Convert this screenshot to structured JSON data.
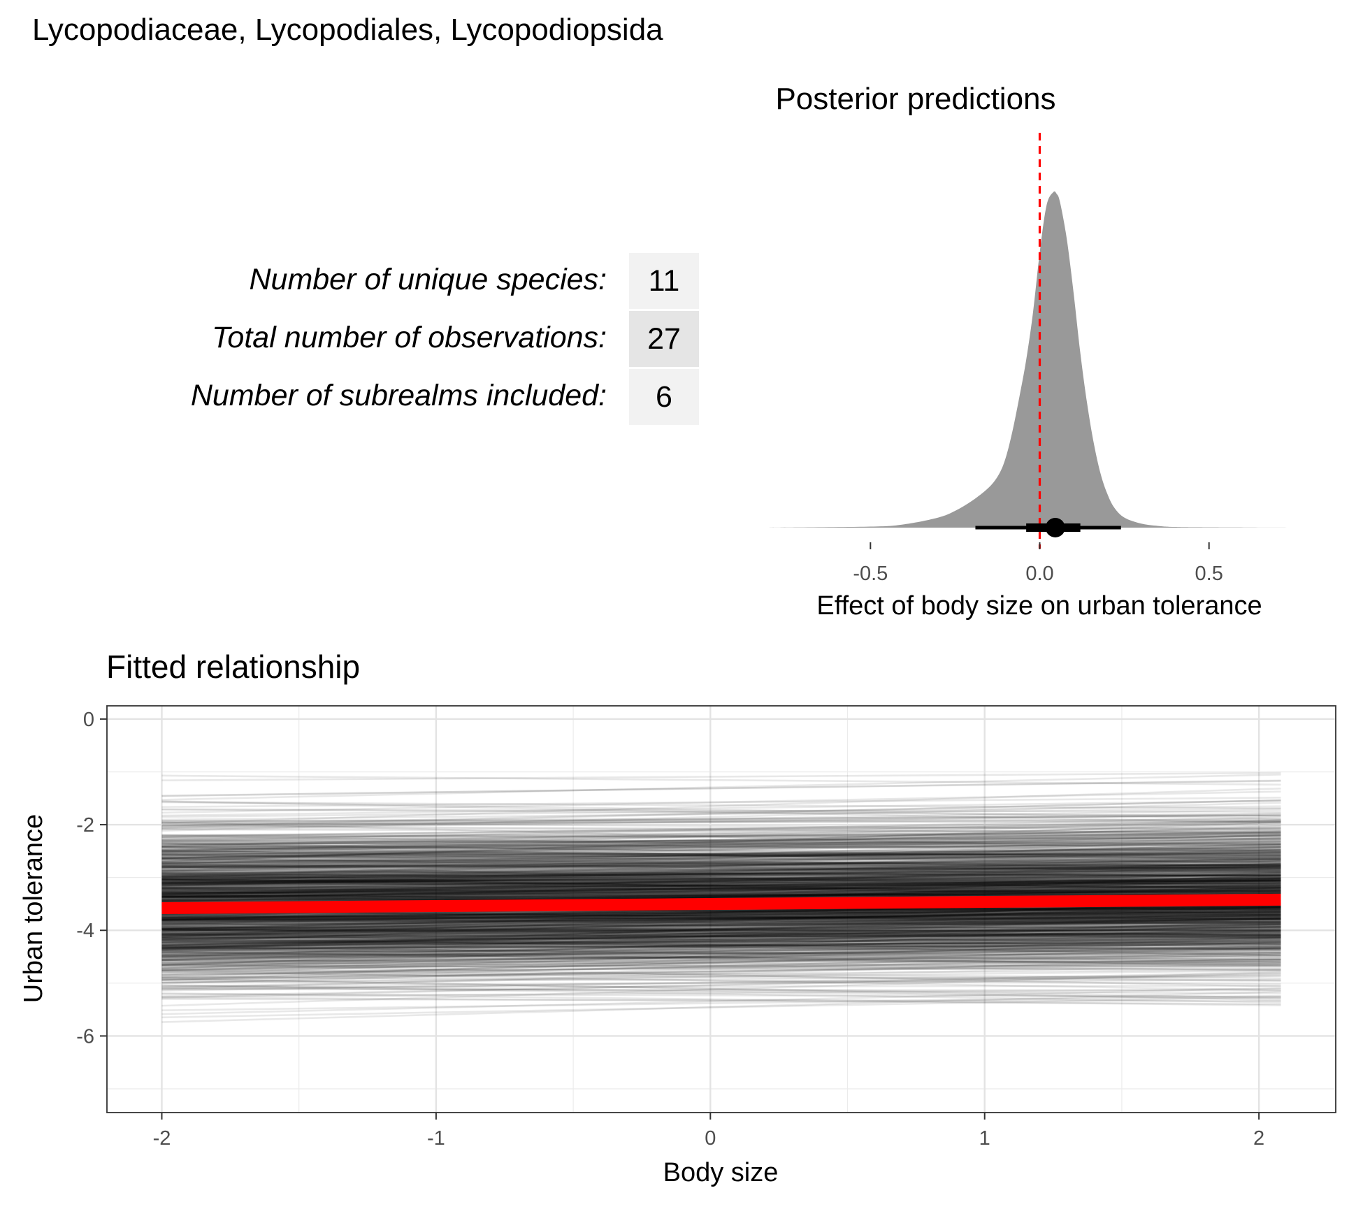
{
  "page": {
    "title": "Lycopodiaceae, Lycopodiales, Lycopodiopsida"
  },
  "stats": [
    {
      "label": "Number of unique species:",
      "value": "11"
    },
    {
      "label": "Total number of observations:",
      "value": "27"
    },
    {
      "label": "Number of subrealms included:",
      "value": "6"
    }
  ],
  "colors": {
    "density_fill": "#999999",
    "reference_line": "#ff0000",
    "fit_line": "#ff0000",
    "draw_lines": "#000000",
    "stat_cell_light": "#f2f2f2",
    "stat_cell_dark": "#e5e5e5"
  },
  "chart_data": [
    {
      "type": "area",
      "title": "Posterior predictions",
      "xlabel": "Effect of body size on urban tolerance",
      "ylabel": "",
      "xlim": [
        -0.8,
        0.8
      ],
      "x_ticks": [
        -0.5,
        0.0,
        0.5
      ],
      "x_tick_labels": [
        "-0.5",
        "0.0",
        "0.5"
      ],
      "reference_line_x": 0.0,
      "density": {
        "x": [
          -0.8,
          -0.5,
          -0.4,
          -0.3,
          -0.25,
          -0.2,
          -0.15,
          -0.12,
          -0.1,
          -0.08,
          -0.06,
          -0.04,
          -0.02,
          0.0,
          0.02,
          0.04,
          0.05,
          0.06,
          0.08,
          0.1,
          0.12,
          0.14,
          0.16,
          0.18,
          0.2,
          0.22,
          0.25,
          0.3,
          0.35,
          0.4,
          0.5,
          0.8
        ],
        "y": [
          0.0,
          0.003,
          0.01,
          0.03,
          0.05,
          0.08,
          0.12,
          0.16,
          0.21,
          0.29,
          0.39,
          0.5,
          0.64,
          0.82,
          0.96,
          1.0,
          0.995,
          0.97,
          0.86,
          0.7,
          0.52,
          0.37,
          0.25,
          0.16,
          0.1,
          0.06,
          0.03,
          0.012,
          0.005,
          0.002,
          0.001,
          0.0
        ]
      },
      "point_estimate": 0.046,
      "interval_66": [
        -0.04,
        0.12
      ],
      "interval_95": [
        -0.19,
        0.24
      ]
    },
    {
      "type": "line",
      "title": "Fitted relationship",
      "xlabel": "Body size",
      "ylabel": "Urban tolerance",
      "xlim": [
        -2.2,
        2.28
      ],
      "ylim": [
        -7.45,
        0.25
      ],
      "x_ticks": [
        -2,
        -1,
        0,
        1,
        2
      ],
      "y_ticks": [
        0,
        -2,
        -4,
        -6
      ],
      "x_range": [
        -2.0,
        2.08
      ],
      "grid": true,
      "fit": {
        "x": [
          -2.0,
          2.08
        ],
        "y": [
          -3.58,
          -3.42
        ]
      },
      "posterior_draws": {
        "count": 1000,
        "intercept_mean": -3.5,
        "intercept_sd": 0.75,
        "slope_mean": 0.04,
        "slope_sd": 0.06
      }
    }
  ]
}
